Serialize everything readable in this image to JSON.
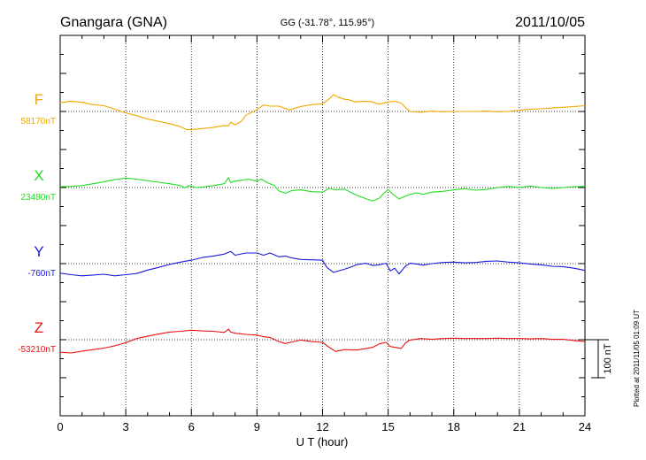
{
  "header": {
    "station": "Gnangara (GNA)",
    "coords": "GG (-31.78°, 115.95°)",
    "date": "2011/10/05"
  },
  "plotted_note": "Plotted at 2011/11/05 01:09 UT",
  "chart_data": {
    "type": "line",
    "xlabel": "U T (hour)",
    "xlim": [
      0,
      24
    ],
    "x_ticks": [
      "0",
      "3",
      "6",
      "9",
      "12",
      "15",
      "18",
      "21",
      "24"
    ],
    "scale_bar_label": "100 nT",
    "scale_bar_nT": 100,
    "series": [
      {
        "name": "F",
        "baseline_label": "58170nT",
        "color": "#f0a800",
        "offset_nT": 200,
        "x": [
          0,
          0.5,
          1,
          1.5,
          2,
          2.5,
          3,
          3.5,
          4,
          4.5,
          5,
          5.5,
          5.8,
          6,
          6.5,
          7,
          7.5,
          7.7,
          7.8,
          8,
          8.3,
          8.5,
          9,
          9.3,
          9.6,
          10,
          10.5,
          11,
          11.5,
          12,
          12.3,
          12.5,
          12.7,
          13,
          13.2,
          13.5,
          13.8,
          14.2,
          14.6,
          15,
          15.3,
          15.6,
          15.8,
          16,
          16.5,
          17,
          17.5,
          18,
          18.5,
          19,
          19.5,
          20,
          20.5,
          21,
          21.5,
          22,
          22.5,
          23,
          23.5,
          24
        ],
        "y": [
          223,
          227,
          224,
          218,
          215,
          206,
          196,
          189,
          180,
          174,
          168,
          160,
          152,
          152,
          155,
          158,
          163,
          162,
          172,
          165,
          175,
          190,
          205,
          217,
          214,
          214,
          204,
          213,
          218,
          220,
          233,
          244,
          238,
          232,
          231,
          225,
          227,
          226,
          219,
          225,
          227,
          222,
          210,
          200,
          198,
          201,
          199,
          200,
          200,
          200,
          201,
          199,
          200,
          203,
          206,
          207,
          209,
          211,
          213,
          215
        ]
      },
      {
        "name": "X",
        "baseline_label": "23480nT",
        "color": "#22dd22",
        "offset_nT": 0,
        "x": [
          0,
          0.5,
          1,
          1.5,
          2,
          2.5,
          3,
          3.5,
          4,
          4.5,
          5,
          5.5,
          5.7,
          5.9,
          6.2,
          6.5,
          7,
          7.5,
          7.7,
          7.8,
          8,
          8.3,
          8.6,
          9,
          9.2,
          9.5,
          9.8,
          10,
          10.3,
          10.6,
          11,
          11.5,
          12,
          12.3,
          12.6,
          13,
          13.3,
          13.6,
          14,
          14.3,
          14.6,
          14.8,
          15,
          15.2,
          15.5,
          15.8,
          16,
          16.3,
          16.6,
          17,
          17.5,
          18,
          18.5,
          19,
          19.5,
          20,
          20.5,
          21,
          21.5,
          22,
          22.5,
          23,
          23.5,
          24
        ],
        "y": [
          2,
          3,
          5,
          10,
          15,
          21,
          25,
          22,
          18,
          14,
          10,
          5,
          -1,
          5,
          0,
          1,
          5,
          10,
          26,
          13,
          17,
          19,
          22,
          17,
          22,
          12,
          5,
          -9,
          -15,
          -8,
          -6,
          -11,
          -12,
          -2,
          -6,
          -4,
          -13,
          -21,
          -30,
          -35,
          -28,
          -15,
          -5,
          -17,
          -30,
          -22,
          -18,
          -14,
          -18,
          -12,
          -10,
          -6,
          -3,
          -7,
          -5,
          0,
          3,
          0,
          4,
          0,
          -2,
          0,
          2,
          3
        ]
      },
      {
        "name": "Y",
        "baseline_label": "-760nT",
        "color": "#1a1add",
        "offset_nT": -200,
        "x": [
          0,
          0.5,
          1,
          1.5,
          2,
          2.5,
          3,
          3.5,
          4,
          4.5,
          5,
          5.5,
          6,
          6.5,
          7,
          7.5,
          7.8,
          8,
          8.5,
          9,
          9.3,
          9.6,
          10,
          10.3,
          10.6,
          11,
          11.5,
          12,
          12.2,
          12.5,
          13,
          13.3,
          13.6,
          14,
          14.3,
          14.6,
          14.9,
          15.1,
          15.3,
          15.5,
          15.8,
          16,
          16.3,
          16.6,
          17,
          17.5,
          18,
          18.5,
          19,
          19.5,
          20,
          20.5,
          21,
          21.5,
          22,
          22.5,
          23,
          23.5,
          24
        ],
        "y": [
          -225,
          -229,
          -232,
          -230,
          -228,
          -232,
          -229,
          -226,
          -217,
          -210,
          -202,
          -196,
          -191,
          -184,
          -180,
          -175,
          -168,
          -178,
          -172,
          -172,
          -178,
          -172,
          -182,
          -180,
          -185,
          -189,
          -190,
          -191,
          -210,
          -223,
          -215,
          -209,
          -202,
          -199,
          -205,
          -203,
          -199,
          -219,
          -212,
          -227,
          -206,
          -199,
          -201,
          -204,
          -200,
          -197,
          -196,
          -198,
          -197,
          -194,
          -193,
          -196,
          -198,
          -201,
          -203,
          -207,
          -208,
          -212,
          -218
        ]
      },
      {
        "name": "Z",
        "baseline_label": "-53210nT",
        "color": "#ee1111",
        "offset_nT": -400,
        "x": [
          0,
          0.5,
          1,
          1.5,
          2,
          2.5,
          3,
          3.5,
          4,
          4.5,
          5,
          5.5,
          6,
          6.5,
          7,
          7.5,
          7.7,
          7.8,
          8,
          8.5,
          9,
          9.3,
          9.6,
          10,
          10.3,
          10.6,
          11,
          11.5,
          12,
          12.3,
          12.6,
          13,
          13.3,
          13.6,
          14,
          14.3,
          14.6,
          14.9,
          15.1,
          15.3,
          15.6,
          15.8,
          16,
          16.5,
          17,
          17.5,
          18,
          18.5,
          19,
          19.5,
          20,
          20.5,
          21,
          21.5,
          22,
          22.5,
          23,
          23.5,
          24
        ],
        "y": [
          -433,
          -435,
          -430,
          -426,
          -422,
          -416,
          -408,
          -397,
          -391,
          -385,
          -380,
          -378,
          -375,
          -377,
          -378,
          -381,
          -372,
          -380,
          -383,
          -386,
          -388,
          -392,
          -394,
          -405,
          -410,
          -406,
          -401,
          -405,
          -407,
          -420,
          -431,
          -426,
          -427,
          -427,
          -423,
          -420,
          -411,
          -407,
          -418,
          -420,
          -423,
          -408,
          -401,
          -397,
          -399,
          -397,
          -396,
          -397,
          -397,
          -397,
          -396,
          -397,
          -397,
          -398,
          -397,
          -399,
          -399,
          -402,
          -405
        ]
      }
    ]
  }
}
